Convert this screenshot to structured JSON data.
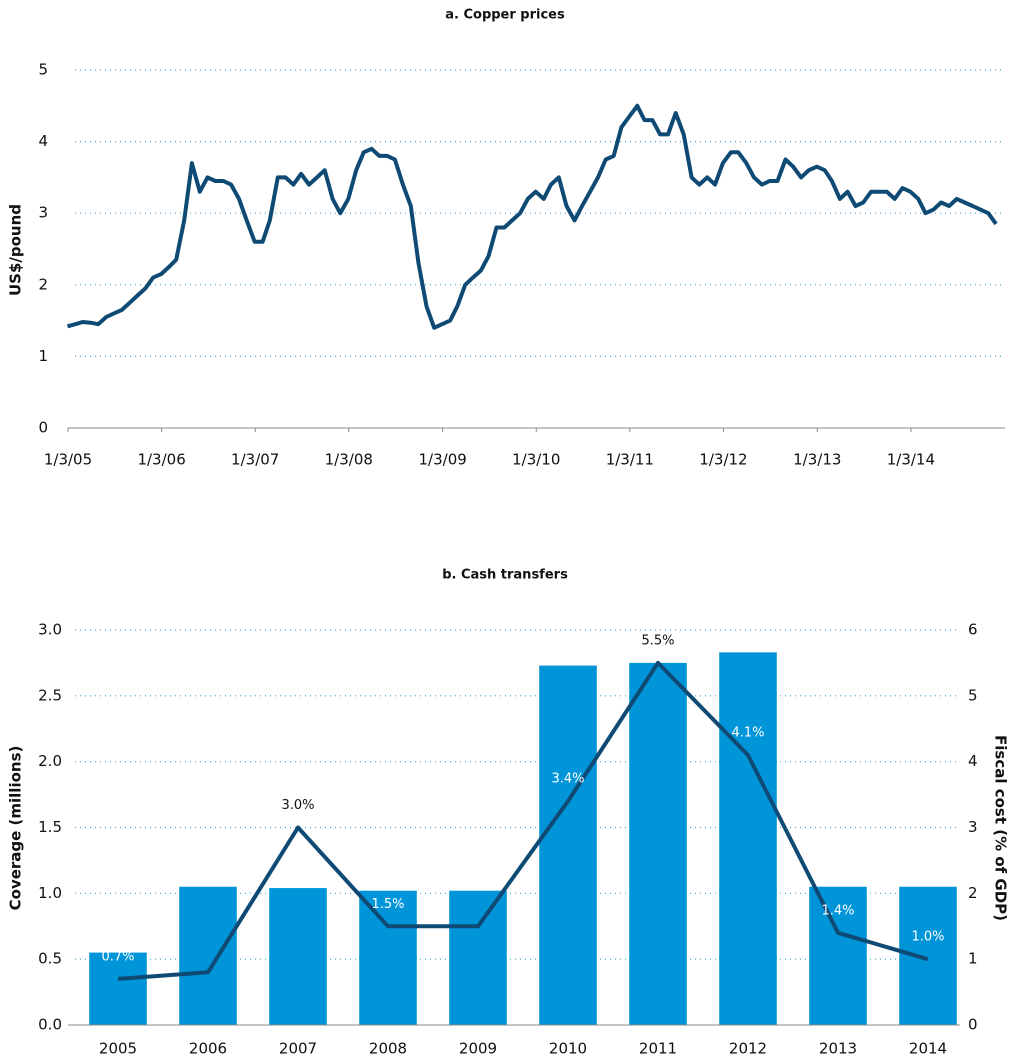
{
  "chart_data": [
    {
      "type": "line",
      "title": "a. Copper prices",
      "ylabel": "US$/pound",
      "color": "#0f4a75",
      "grid": true,
      "x": [
        "2005-01",
        "2005-02",
        "2005-03",
        "2005-04",
        "2005-05",
        "2005-06",
        "2005-07",
        "2005-08",
        "2005-09",
        "2005-10",
        "2005-11",
        "2005-12",
        "2006-01",
        "2006-02",
        "2006-03",
        "2006-04",
        "2006-05",
        "2006-06",
        "2006-07",
        "2006-08",
        "2006-09",
        "2006-10",
        "2006-11",
        "2006-12",
        "2007-01",
        "2007-02",
        "2007-03",
        "2007-04",
        "2007-05",
        "2007-06",
        "2007-07",
        "2007-08",
        "2007-09",
        "2007-10",
        "2007-11",
        "2007-12",
        "2008-01",
        "2008-02",
        "2008-03",
        "2008-04",
        "2008-05",
        "2008-06",
        "2008-07",
        "2008-08",
        "2008-09",
        "2008-10",
        "2008-11",
        "2008-12",
        "2009-01",
        "2009-02",
        "2009-03",
        "2009-04",
        "2009-05",
        "2009-06",
        "2009-07",
        "2009-08",
        "2009-09",
        "2009-10",
        "2009-11",
        "2009-12",
        "2010-01",
        "2010-02",
        "2010-03",
        "2010-04",
        "2010-05",
        "2010-06",
        "2010-07",
        "2010-08",
        "2010-09",
        "2010-10",
        "2010-11",
        "2010-12",
        "2011-01",
        "2011-02",
        "2011-03",
        "2011-04",
        "2011-05",
        "2011-06",
        "2011-07",
        "2011-08",
        "2011-09",
        "2011-10",
        "2011-11",
        "2011-12",
        "2012-01",
        "2012-02",
        "2012-03",
        "2012-04",
        "2012-05",
        "2012-06",
        "2012-07",
        "2012-08",
        "2012-09",
        "2012-10",
        "2012-11",
        "2012-12",
        "2013-01",
        "2013-02",
        "2013-03",
        "2013-04",
        "2013-05",
        "2013-06",
        "2013-07",
        "2013-08",
        "2013-09",
        "2013-10",
        "2013-11",
        "2013-12",
        "2014-01",
        "2014-02",
        "2014-03",
        "2014-04",
        "2014-05",
        "2014-06",
        "2014-07",
        "2014-08",
        "2014-09",
        "2014-10",
        "2014-11",
        "2014-12"
      ],
      "values": [
        1.42,
        1.45,
        1.48,
        1.47,
        1.45,
        1.55,
        1.6,
        1.65,
        1.75,
        1.85,
        1.95,
        2.1,
        2.15,
        2.25,
        2.35,
        2.9,
        3.7,
        3.3,
        3.5,
        3.45,
        3.45,
        3.4,
        3.2,
        2.9,
        2.6,
        2.6,
        2.9,
        3.5,
        3.5,
        3.4,
        3.55,
        3.4,
        3.5,
        3.6,
        3.2,
        3.0,
        3.2,
        3.6,
        3.85,
        3.9,
        3.8,
        3.8,
        3.75,
        3.4,
        3.1,
        2.3,
        1.7,
        1.4,
        1.45,
        1.5,
        1.7,
        2.0,
        2.1,
        2.2,
        2.4,
        2.8,
        2.8,
        2.9,
        3.0,
        3.2,
        3.3,
        3.2,
        3.4,
        3.5,
        3.1,
        2.9,
        3.1,
        3.3,
        3.5,
        3.75,
        3.8,
        4.2,
        4.35,
        4.5,
        4.3,
        4.3,
        4.1,
        4.1,
        4.4,
        4.1,
        3.5,
        3.4,
        3.5,
        3.4,
        3.7,
        3.85,
        3.85,
        3.7,
        3.5,
        3.4,
        3.45,
        3.45,
        3.75,
        3.65,
        3.5,
        3.6,
        3.65,
        3.6,
        3.45,
        3.2,
        3.3,
        3.1,
        3.15,
        3.3,
        3.3,
        3.3,
        3.2,
        3.35,
        3.3,
        3.2,
        3.0,
        3.05,
        3.15,
        3.1,
        3.2,
        3.15,
        3.1,
        3.05,
        3.0,
        2.85
      ],
      "xlim": [
        "2005-01-03",
        "2015-01-05"
      ],
      "xticks": [
        {
          "value": "2005-01-03",
          "label": "1/3/05"
        },
        {
          "value": "2006-01-03",
          "label": "1/3/06"
        },
        {
          "value": "2007-01-03",
          "label": "1/3/07"
        },
        {
          "value": "2008-01-03",
          "label": "1/3/08"
        },
        {
          "value": "2009-01-03",
          "label": "1/3/09"
        },
        {
          "value": "2010-01-03",
          "label": "1/3/10"
        },
        {
          "value": "2011-01-03",
          "label": "1/3/11"
        },
        {
          "value": "2012-01-03",
          "label": "1/3/12"
        },
        {
          "value": "2013-01-03",
          "label": "1/3/13"
        },
        {
          "value": "2014-01-03",
          "label": "1/3/14"
        }
      ],
      "ylim": [
        0,
        5
      ],
      "yticks": [
        0,
        1,
        2,
        3,
        4,
        5
      ]
    },
    {
      "type": "bar_line",
      "title": "b. Cash transfers",
      "ylabel": "Coverage (millions)",
      "y2label": "Fiscal cost (% of GDP)",
      "grid": true,
      "categories": [
        "2005",
        "2006",
        "2007",
        "2008",
        "2009",
        "2010",
        "2011",
        "2012",
        "2013",
        "2014"
      ],
      "series": [
        {
          "color": "#0095d9",
          "values": [
            0.55,
            1.05,
            1.04,
            1.02,
            1.02,
            2.73,
            2.75,
            2.83,
            1.05,
            1.05
          ]
        },
        {
          "color": "#0f4a75",
          "axis": "y2",
          "values": [
            0.7,
            0.8,
            3.0,
            1.5,
            1.5,
            3.4,
            5.5,
            4.1,
            1.4,
            1.0
          ],
          "value_labels": [
            "0.7%",
            null,
            "3.0%",
            "1.5%",
            null,
            "3.4%",
            "5.5%",
            "4.1%",
            "1.4%",
            "1.0%"
          ]
        }
      ],
      "ylim": [
        0,
        3
      ],
      "yticks": [
        {
          "value": 0,
          "label": "0.0"
        },
        0.5,
        {
          "value": 1,
          "label": "1.0"
        },
        1.5,
        {
          "value": 2,
          "label": "2.0"
        },
        2.5,
        {
          "value": 3,
          "label": "3.0"
        }
      ],
      "y2lim": [
        0,
        6
      ],
      "y2ticks": [
        0,
        1,
        2,
        3,
        4,
        5,
        6
      ]
    }
  ]
}
